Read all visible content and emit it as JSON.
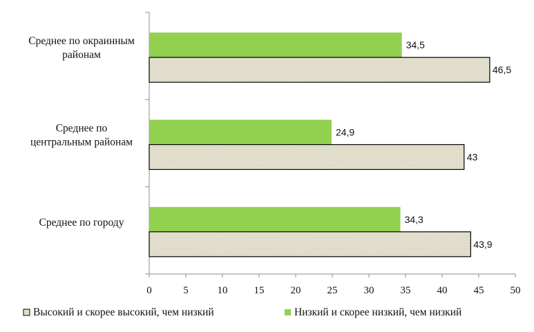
{
  "chart_data": {
    "type": "bar",
    "orientation": "horizontal",
    "categories": [
      "Среднее по окраинным районам",
      "Среднее по центральным районам",
      "Среднее по городу"
    ],
    "category_lines": [
      [
        "Среднее по окраинным",
        "районам"
      ],
      [
        "Среднее по",
        "центральным районам"
      ],
      [
        "Среднее по городу"
      ]
    ],
    "series": [
      {
        "name": "Низкий и скорее низкий, чем низкий",
        "values": [
          34.5,
          24.9,
          34.3
        ],
        "labels": [
          "34,5",
          "24,9",
          "34,3"
        ],
        "color": "#92d050"
      },
      {
        "name": "Высокий и скорее высокий, чем низкий",
        "values": [
          46.5,
          43,
          43.9
        ],
        "labels": [
          "46,5",
          "43",
          "43,9"
        ],
        "color": "#ddd9c4"
      }
    ],
    "xlim": [
      0,
      50
    ],
    "xticks": [
      "0",
      "5",
      "10",
      "15",
      "20",
      "25",
      "30",
      "35",
      "40",
      "45",
      "50"
    ],
    "grid": false,
    "legend_position": "bottom",
    "legend_order": [
      1,
      0
    ]
  }
}
